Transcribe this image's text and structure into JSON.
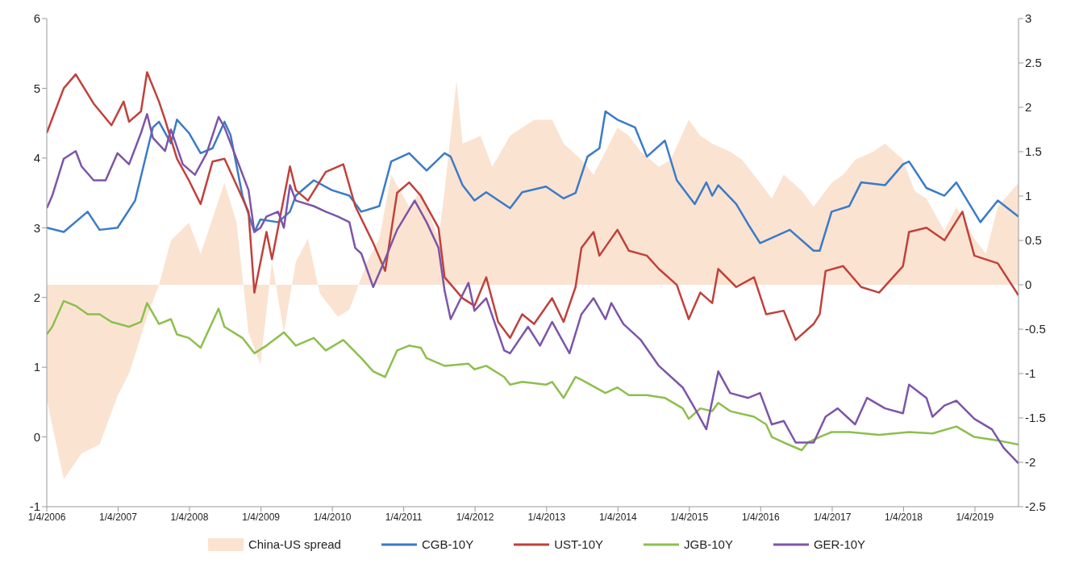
{
  "chart_data": {
    "type": "line",
    "legend": "bottom",
    "xlim": [
      "2006-01-04",
      "2019-08-15"
    ],
    "xticks": [
      {
        "value": "2006-01-04",
        "label": "1/4/2006"
      },
      {
        "value": "2007-01-04",
        "label": "1/4/2007"
      },
      {
        "value": "2008-01-04",
        "label": "1/4/2008"
      },
      {
        "value": "2009-01-04",
        "label": "1/4/2009"
      },
      {
        "value": "2010-01-04",
        "label": "1/4/2010"
      },
      {
        "value": "2011-01-04",
        "label": "1/4/2011"
      },
      {
        "value": "2012-01-04",
        "label": "1/4/2012"
      },
      {
        "value": "2013-01-04",
        "label": "1/4/2013"
      },
      {
        "value": "2014-01-04",
        "label": "1/4/2014"
      },
      {
        "value": "2015-01-04",
        "label": "1/4/2015"
      },
      {
        "value": "2016-01-04",
        "label": "1/4/2016"
      },
      {
        "value": "2017-01-04",
        "label": "1/4/2017"
      },
      {
        "value": "2018-01-04",
        "label": "1/4/2018"
      },
      {
        "value": "2019-01-04",
        "label": "1/4/2019"
      }
    ],
    "ylim": [
      -1,
      6
    ],
    "yticks": [
      -1,
      0,
      1,
      2,
      3,
      4,
      5,
      6
    ],
    "y2lim": [
      -2.5,
      3
    ],
    "y2ticks": [
      -2.5,
      -2,
      -1.5,
      -1,
      -0.5,
      0,
      0.5,
      1,
      1.5,
      2,
      2.5,
      3
    ],
    "series": [
      {
        "name": "China-US spread",
        "type": "area",
        "axis": "y2",
        "color": "#fbe3d2",
        "x": [
          "2006-01-04",
          "2006-04",
          "2006-07",
          "2006-10",
          "2007-01",
          "2007-03",
          "2007-06",
          "2007-08",
          "2007-10",
          "2008-01",
          "2008-03",
          "2008-07",
          "2008-09",
          "2008-11",
          "2009-01",
          "2009-03",
          "2009-05",
          "2009-07",
          "2009-09",
          "2009-11",
          "2010-02",
          "2010-04",
          "2010-07",
          "2010-09",
          "2010-11",
          "2011-02",
          "2011-04",
          "2011-07",
          "2011-08",
          "2011-10",
          "2011-11",
          "2012-02",
          "2012-04",
          "2012-07",
          "2012-09",
          "2012-11",
          "2013-02",
          "2013-04",
          "2013-07",
          "2013-09",
          "2013-11",
          "2014-01",
          "2014-03",
          "2014-05",
          "2014-08",
          "2014-10",
          "2015-01",
          "2015-03",
          "2015-05",
          "2015-08",
          "2015-10",
          "2016-01",
          "2016-03",
          "2016-05",
          "2016-08",
          "2016-10",
          "2017-01",
          "2017-03",
          "2017-05",
          "2017-08",
          "2017-10",
          "2018-01",
          "2018-03",
          "2018-05",
          "2018-08",
          "2018-10",
          "2019-01",
          "2019-03",
          "2019-05",
          "2019-08-15"
        ],
        "values": [
          -1.3,
          -2.19,
          -1.9,
          -1.8,
          -1.25,
          -1.0,
          -0.36,
          0,
          0.5,
          0.7,
          0.35,
          1.15,
          0.7,
          -0.54,
          -0.9,
          0.26,
          -0.54,
          0.26,
          0.52,
          -0.1,
          -0.36,
          -0.28,
          0.26,
          0.52,
          1.24,
          0.88,
          1.06,
          0.52,
          1.06,
          2.3,
          1.59,
          1.68,
          1.33,
          1.68,
          1.77,
          1.86,
          1.86,
          1.59,
          1.41,
          1.24,
          1.5,
          1.77,
          1.68,
          1.5,
          1.33,
          1.41,
          1.86,
          1.68,
          1.59,
          1.5,
          1.41,
          1.15,
          0.97,
          1.24,
          1.06,
          0.88,
          1.15,
          1.24,
          1.41,
          1.5,
          1.59,
          1.41,
          1.06,
          0.97,
          0.61,
          0.88,
          0.52,
          0.35,
          0.88,
          1.15
        ]
      },
      {
        "name": "CGB-10Y",
        "color": "#3a7bc8",
        "x": [
          "2006-01-04",
          "2006-04",
          "2006-08",
          "2006-10",
          "2007-01",
          "2007-04",
          "2007-07",
          "2007-08",
          "2007-10",
          "2007-11",
          "2008-01",
          "2008-03",
          "2008-05",
          "2008-07",
          "2008-08",
          "2008-10",
          "2008-12",
          "2009-01",
          "2009-04",
          "2009-06",
          "2009-07",
          "2009-10",
          "2010-01",
          "2010-04",
          "2010-06",
          "2010-09",
          "2010-11",
          "2011-02",
          "2011-05",
          "2011-08",
          "2011-09",
          "2011-11",
          "2012-01",
          "2012-03",
          "2012-07",
          "2012-09",
          "2013-01",
          "2013-04",
          "2013-06",
          "2013-08",
          "2013-10",
          "2013-11",
          "2014-01",
          "2014-04",
          "2014-06",
          "2014-09",
          "2014-11",
          "2015-02",
          "2015-04",
          "2015-05",
          "2015-06",
          "2015-09",
          "2015-11",
          "2016-01",
          "2016-06",
          "2016-10",
          "2016-11",
          "2017-01",
          "2017-04",
          "2017-06",
          "2017-10",
          "2018-01",
          "2018-02",
          "2018-05",
          "2018-08",
          "2018-10",
          "2019-02",
          "2019-05",
          "2019-08-15"
        ],
        "values": [
          3.0,
          2.94,
          3.23,
          2.97,
          3.0,
          3.39,
          4.44,
          4.52,
          4.21,
          4.55,
          4.36,
          4.07,
          4.14,
          4.52,
          4.33,
          3.46,
          2.94,
          3.12,
          3.08,
          3.23,
          3.46,
          3.68,
          3.54,
          3.46,
          3.23,
          3.31,
          3.95,
          4.07,
          3.82,
          4.07,
          4.02,
          3.61,
          3.39,
          3.51,
          3.28,
          3.51,
          3.59,
          3.42,
          3.5,
          4.02,
          4.14,
          4.67,
          4.55,
          4.44,
          4.02,
          4.25,
          3.68,
          3.34,
          3.65,
          3.46,
          3.61,
          3.34,
          3.05,
          2.78,
          2.97,
          2.67,
          2.67,
          3.23,
          3.31,
          3.65,
          3.61,
          3.91,
          3.95,
          3.57,
          3.46,
          3.65,
          3.08,
          3.39,
          3.16
        ]
      },
      {
        "name": "UST-10Y",
        "color": "#c0413b",
        "x": [
          "2006-01-04",
          "2006-04",
          "2006-06",
          "2006-09",
          "2006-12",
          "2007-02",
          "2007-03",
          "2007-05",
          "2007-06",
          "2007-08",
          "2007-09",
          "2007-11",
          "2008-01",
          "2008-03",
          "2008-05",
          "2008-07",
          "2008-09",
          "2008-11",
          "2008-12",
          "2009-02",
          "2009-03",
          "2009-06",
          "2009-07",
          "2009-09",
          "2009-12",
          "2010-03",
          "2010-05",
          "2010-08",
          "2010-10",
          "2010-12",
          "2011-02",
          "2011-04",
          "2011-07",
          "2011-08",
          "2011-11",
          "2012-01",
          "2012-03",
          "2012-05",
          "2012-07",
          "2012-09",
          "2012-11",
          "2013-02",
          "2013-04",
          "2013-06",
          "2013-07",
          "2013-09",
          "2013-10",
          "2014-01",
          "2014-03",
          "2014-06",
          "2014-08",
          "2014-11",
          "2015-01",
          "2015-03",
          "2015-05",
          "2015-06",
          "2015-09",
          "2015-12",
          "2016-02",
          "2016-05",
          "2016-07",
          "2016-10",
          "2016-11",
          "2016-12",
          "2017-03",
          "2017-06",
          "2017-09",
          "2018-01",
          "2018-02",
          "2018-05",
          "2018-08",
          "2018-11",
          "2019-01",
          "2019-05",
          "2019-08-15"
        ],
        "values": [
          4.36,
          5.0,
          5.2,
          4.78,
          4.47,
          4.81,
          4.52,
          4.67,
          5.23,
          4.81,
          4.55,
          3.99,
          3.68,
          3.34,
          3.95,
          3.99,
          3.61,
          3.23,
          2.07,
          2.94,
          2.55,
          3.88,
          3.54,
          3.39,
          3.8,
          3.91,
          3.31,
          2.78,
          2.38,
          3.5,
          3.65,
          3.46,
          3.0,
          2.29,
          1.99,
          1.88,
          2.29,
          1.65,
          1.42,
          1.76,
          1.62,
          1.99,
          1.65,
          2.15,
          2.71,
          2.94,
          2.6,
          2.97,
          2.67,
          2.6,
          2.41,
          2.18,
          1.69,
          2.07,
          1.92,
          2.41,
          2.15,
          2.29,
          1.76,
          1.81,
          1.39,
          1.62,
          1.76,
          2.38,
          2.45,
          2.15,
          2.07,
          2.45,
          2.94,
          3.0,
          2.82,
          3.23,
          2.6,
          2.49,
          2.03
        ]
      },
      {
        "name": "JGB-10Y",
        "color": "#8dbf4e",
        "x": [
          "2006-01-04",
          "2006-02",
          "2006-04",
          "2006-06",
          "2006-08",
          "2006-10",
          "2006-12",
          "2007-03",
          "2007-05",
          "2007-06",
          "2007-08",
          "2007-10",
          "2007-11",
          "2008-01",
          "2008-03",
          "2008-06",
          "2008-07",
          "2008-10",
          "2008-12",
          "2009-02",
          "2009-05",
          "2009-07",
          "2009-10",
          "2009-12",
          "2010-03",
          "2010-06",
          "2010-08",
          "2010-10",
          "2010-12",
          "2011-02",
          "2011-04",
          "2011-05",
          "2011-08",
          "2011-12",
          "2012-01",
          "2012-03",
          "2012-06",
          "2012-07",
          "2012-09",
          "2013-01",
          "2013-02",
          "2013-04",
          "2013-06",
          "2013-07",
          "2013-11",
          "2014-01",
          "2014-03",
          "2014-06",
          "2014-09",
          "2014-12",
          "2015-01",
          "2015-03",
          "2015-05",
          "2015-06",
          "2015-08",
          "2015-12",
          "2016-02",
          "2016-03",
          "2016-05",
          "2016-08",
          "2016-09",
          "2016-11",
          "2017-01",
          "2017-04",
          "2017-09",
          "2018-02",
          "2018-06",
          "2018-10",
          "2019-01",
          "2019-05",
          "2019-08-15"
        ],
        "values": [
          1.47,
          1.58,
          1.95,
          1.88,
          1.76,
          1.76,
          1.65,
          1.58,
          1.65,
          1.92,
          1.62,
          1.69,
          1.47,
          1.42,
          1.28,
          1.84,
          1.58,
          1.42,
          1.2,
          1.31,
          1.5,
          1.31,
          1.42,
          1.24,
          1.39,
          1.13,
          0.94,
          0.86,
          1.24,
          1.31,
          1.28,
          1.13,
          1.02,
          1.05,
          0.97,
          1.02,
          0.86,
          0.75,
          0.79,
          0.75,
          0.79,
          0.56,
          0.86,
          0.82,
          0.63,
          0.71,
          0.6,
          0.6,
          0.56,
          0.41,
          0.26,
          0.41,
          0.37,
          0.49,
          0.37,
          0.29,
          0.18,
          0.0,
          -0.08,
          -0.19,
          -0.08,
          0.0,
          0.07,
          0.07,
          0.03,
          0.07,
          0.05,
          0.15,
          0.0,
          -0.05,
          -0.11
        ]
      },
      {
        "name": "GER-10Y",
        "color": "#7d55a8",
        "x": [
          "2006-01-04",
          "2006-02",
          "2006-04",
          "2006-06",
          "2006-07",
          "2006-09",
          "2006-11",
          "2007-01",
          "2007-03",
          "2007-05",
          "2007-06",
          "2007-07",
          "2007-09",
          "2007-10",
          "2007-12",
          "2008-02",
          "2008-04",
          "2008-06",
          "2008-07",
          "2008-09",
          "2008-11",
          "2008-12",
          "2009-01",
          "2009-02",
          "2009-04",
          "2009-05",
          "2009-06",
          "2009-07",
          "2009-10",
          "2009-12",
          "2010-02",
          "2010-04",
          "2010-05",
          "2010-06",
          "2010-08",
          "2010-10",
          "2010-12",
          "2011-03",
          "2011-05",
          "2011-07",
          "2011-08",
          "2011-09",
          "2011-12",
          "2012-01",
          "2012-03",
          "2012-06",
          "2012-07",
          "2012-10",
          "2012-12",
          "2013-02",
          "2013-05",
          "2013-07",
          "2013-09",
          "2013-11",
          "2013-12",
          "2014-02",
          "2014-05",
          "2014-08",
          "2014-12",
          "2015-02",
          "2015-04",
          "2015-06",
          "2015-08",
          "2015-11",
          "2016-01",
          "2016-03",
          "2016-05",
          "2016-07",
          "2016-10",
          "2016-12",
          "2017-02",
          "2017-05",
          "2017-07",
          "2017-10",
          "2018-01",
          "2018-02",
          "2018-05",
          "2018-06",
          "2018-08",
          "2018-10",
          "2019-01",
          "2019-04",
          "2019-06",
          "2019-08-15"
        ],
        "values": [
          3.28,
          3.46,
          3.99,
          4.1,
          3.88,
          3.68,
          3.68,
          4.07,
          3.91,
          4.36,
          4.63,
          4.29,
          4.1,
          4.41,
          3.91,
          3.76,
          4.07,
          4.59,
          4.44,
          3.99,
          3.54,
          2.94,
          3.0,
          3.16,
          3.23,
          3.0,
          3.61,
          3.39,
          3.31,
          3.23,
          3.16,
          3.08,
          2.71,
          2.63,
          2.15,
          2.55,
          2.97,
          3.39,
          3.08,
          2.71,
          2.1,
          1.69,
          2.21,
          1.81,
          1.99,
          1.24,
          1.2,
          1.58,
          1.31,
          1.65,
          1.2,
          1.76,
          1.99,
          1.69,
          1.92,
          1.62,
          1.39,
          1.02,
          0.71,
          0.41,
          0.11,
          0.94,
          0.63,
          0.56,
          0.63,
          0.18,
          0.23,
          -0.08,
          -0.08,
          0.29,
          0.41,
          0.18,
          0.56,
          0.41,
          0.34,
          0.75,
          0.56,
          0.29,
          0.45,
          0.52,
          0.26,
          0.11,
          -0.16,
          -0.38
        ]
      }
    ]
  }
}
